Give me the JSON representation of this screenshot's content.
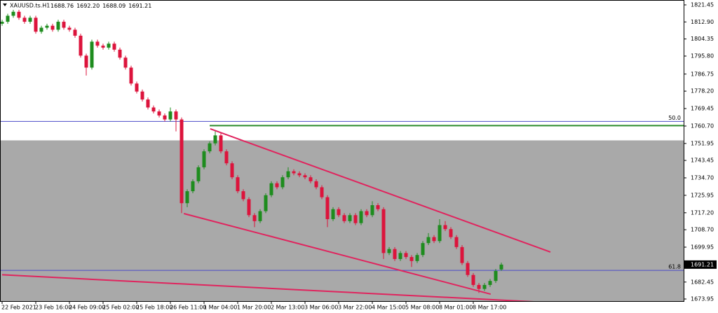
{
  "chart_data": {
    "type": "candlestick",
    "title": "XAUUSD.ts.H1",
    "title_ohlc_labels": [
      "1688.76",
      "1692.20",
      "1688.09",
      "1691.21"
    ],
    "categories": [
      "22 Feb 2021",
      null,
      null,
      null,
      null,
      null,
      "23 Feb 16:00",
      null,
      null,
      null,
      null,
      null,
      "24 Feb 09:00",
      null,
      null,
      null,
      null,
      null,
      "25 Feb 02:00",
      null,
      null,
      null,
      null,
      null,
      "25 Feb 18:00",
      null,
      null,
      null,
      null,
      null,
      "26 Feb 11:00",
      null,
      null,
      null,
      null,
      null,
      "1 Mar 04:00",
      null,
      null,
      null,
      null,
      null,
      "1 Mar 20:00",
      null,
      null,
      null,
      null,
      null,
      "2 Mar 13:00",
      null,
      null,
      null,
      null,
      null,
      "3 Mar 06:00",
      null,
      null,
      null,
      null,
      null,
      "3 Mar 22:00",
      null,
      null,
      null,
      null,
      null,
      "4 Mar 15:00",
      null,
      null,
      null,
      null,
      null,
      "5 Mar 08:00",
      null,
      null,
      null,
      null,
      null,
      "8 Mar 01:00",
      null,
      null,
      null,
      null,
      null,
      "8 Mar 17:00",
      null,
      null,
      null,
      null,
      null
    ],
    "open": [
      1812,
      1813,
      1816,
      1818,
      1815,
      1813,
      1815,
      1808,
      1810,
      1811,
      1809,
      1813,
      1810,
      1809,
      1806,
      1796,
      1790,
      1803,
      1801,
      1800,
      1802,
      1799,
      1795,
      1790,
      1782,
      1778,
      1774,
      1770,
      1768,
      1766,
      1764,
      1768,
      1764,
      1722,
      1728,
      1733,
      1740,
      1748,
      1752,
      1756,
      1748,
      1742,
      1735,
      1728,
      1724,
      1716,
      1713,
      1718,
      1726,
      1732,
      1730,
      1735,
      1738,
      1737,
      1736,
      1735,
      1733,
      1730,
      1725,
      1714,
      1719,
      1716,
      1713,
      1716,
      1712,
      1718,
      1716,
      1721,
      1719,
      1697,
      1699,
      1694,
      1697,
      1695,
      1693,
      1696,
      1702,
      1705,
      1703,
      1711,
      1709,
      1705,
      1700,
      1692,
      1686,
      1681,
      1679,
      1681,
      1683,
      1688.76
    ],
    "high": [
      1814,
      1817,
      1819,
      1819,
      1816,
      1816,
      1816,
      1811,
      1812,
      1812,
      1814,
      1814,
      1811,
      1810,
      1807,
      1797,
      1804,
      1804,
      1802,
      1803,
      1803,
      1800,
      1796,
      1791,
      1783,
      1779,
      1775,
      1771,
      1769,
      1767,
      1770,
      1769,
      1765,
      1729,
      1734,
      1741,
      1749,
      1753,
      1758,
      1757,
      1749,
      1743,
      1736,
      1729,
      1725,
      1717,
      1719,
      1727,
      1733,
      1733,
      1736,
      1740,
      1739,
      1738,
      1737,
      1736,
      1734,
      1731,
      1726,
      1720,
      1720,
      1717,
      1717,
      1717,
      1719,
      1719,
      1723,
      1722,
      1720,
      1700,
      1700,
      1698,
      1698,
      1696,
      1697,
      1703,
      1707,
      1706,
      1714,
      1713,
      1710,
      1706,
      1701,
      1693,
      1687,
      1682,
      1682,
      1684,
      1689,
      1692.2
    ],
    "low": [
      1811,
      1812,
      1815,
      1814,
      1812,
      1812,
      1807,
      1807,
      1809,
      1808,
      1808,
      1809,
      1808,
      1805,
      1795,
      1786,
      1789,
      1800,
      1799,
      1799,
      1798,
      1794,
      1789,
      1781,
      1777,
      1773,
      1769,
      1767,
      1765,
      1763,
      1763,
      1758,
      1717,
      1720,
      1727,
      1732,
      1739,
      1747,
      1751,
      1747,
      1741,
      1734,
      1727,
      1723,
      1715,
      1710,
      1712,
      1717,
      1725,
      1729,
      1729,
      1734,
      1736,
      1735,
      1734,
      1732,
      1729,
      1724,
      1710,
      1713,
      1715,
      1712,
      1712,
      1711,
      1711,
      1715,
      1715,
      1718,
      1694,
      1696,
      1693,
      1693,
      1694,
      1690,
      1692,
      1695,
      1701,
      1702,
      1702,
      1708,
      1704,
      1699,
      1691,
      1685,
      1680,
      1677,
      1678,
      1680,
      1682,
      1688.09
    ],
    "close": [
      1813,
      1816,
      1818,
      1815,
      1813,
      1815,
      1808,
      1810,
      1811,
      1809,
      1813,
      1810,
      1809,
      1806,
      1796,
      1790,
      1803,
      1801,
      1800,
      1802,
      1799,
      1795,
      1790,
      1782,
      1778,
      1774,
      1770,
      1768,
      1766,
      1764,
      1768,
      1764,
      1722,
      1728,
      1733,
      1740,
      1748,
      1752,
      1756,
      1748,
      1742,
      1735,
      1728,
      1724,
      1716,
      1713,
      1718,
      1726,
      1732,
      1730,
      1735,
      1738,
      1737,
      1736,
      1735,
      1733,
      1730,
      1725,
      1714,
      1719,
      1716,
      1713,
      1716,
      1712,
      1718,
      1716,
      1721,
      1719,
      1697,
      1699,
      1694,
      1697,
      1695,
      1693,
      1696,
      1702,
      1705,
      1703,
      1711,
      1709,
      1705,
      1700,
      1692,
      1686,
      1681,
      1679,
      1681,
      1683,
      1688,
      1691.21
    ],
    "up_color": "#1e8c1e",
    "down_color": "#dc143c",
    "ylim": [
      1672.9,
      1823.9
    ],
    "yticks": [
      1821.45,
      {
        "value": 1812.9,
        "label": "1812.90"
      },
      1804.35,
      {
        "value": 1795.8,
        "label": "1795.80"
      },
      1786.75,
      {
        "value": 1778.2,
        "label": "1778.20"
      },
      1769.45,
      {
        "value": 1760.7,
        "label": "1760.70"
      },
      1751.95,
      1743.45,
      {
        "value": 1734.7,
        "label": "1734.70"
      },
      1725.95,
      {
        "value": 1717.2,
        "label": "1717.20"
      },
      {
        "value": 1708.7,
        "label": "1708.70"
      },
      1699.95,
      1682.45,
      1673.95
    ],
    "zone": {
      "top": 1753.5,
      "color": "#a9a9a9"
    },
    "levels": [
      {
        "label": "50.0",
        "value": 1763.0,
        "color": "#4b4bc8"
      },
      {
        "label": "61.8",
        "value": 1688.3,
        "color": "#4b4bc8"
      }
    ],
    "hline": {
      "value": 1760.9,
      "start": 37,
      "color": "#2e8b2e"
    },
    "trendlines": [
      {
        "x": [
          37.1,
          97.75
        ],
        "y": [
          1759.3,
          1697.5
        ],
        "color": "#e0245e"
      },
      {
        "x": [
          32.4,
          87.1
        ],
        "y": [
          1716.8,
          1676.4
        ],
        "color": "#e0245e"
      },
      {
        "x": [
          0,
          95.9
        ],
        "y": [
          1686.1,
          1672.4
        ],
        "color": "#e0245e"
      }
    ]
  }
}
